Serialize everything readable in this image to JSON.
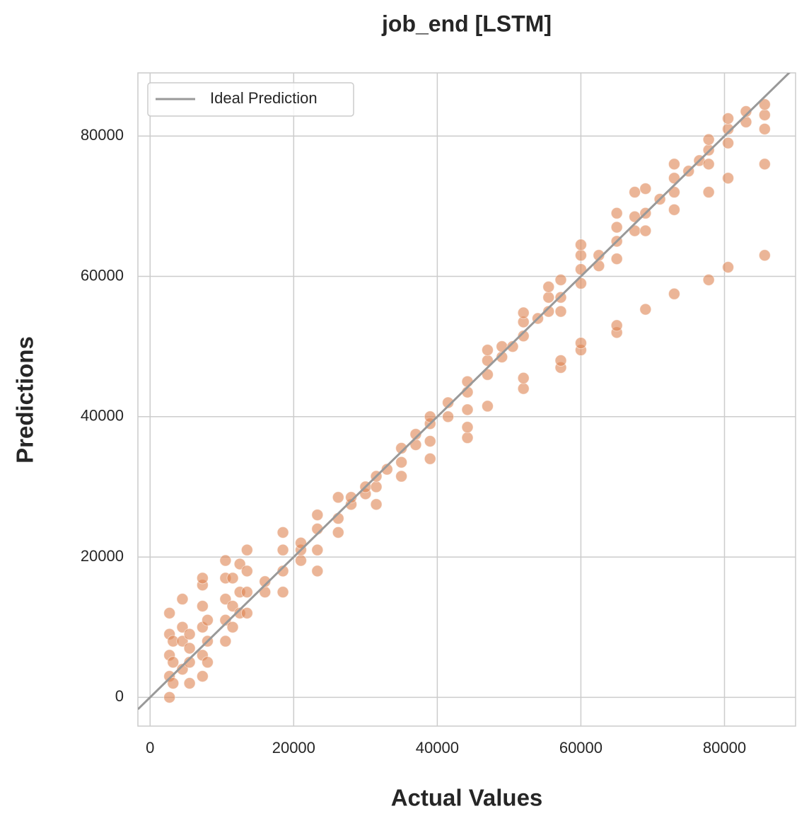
{
  "chart_data": {
    "type": "scatter",
    "title": "job_end [LSTM]",
    "x_label": "Actual Values",
    "y_label": "Predictions",
    "series": [
      {
        "name": null,
        "color": "#dd8452",
        "x": [
          2700,
          2700,
          2700,
          2700,
          2700,
          3200,
          3200,
          3200,
          4500,
          4500,
          4500,
          4500,
          5500,
          5500,
          5500,
          5500,
          7300,
          7300,
          7300,
          7300,
          7300,
          7300,
          8000,
          8000,
          8000,
          10500,
          10500,
          10500,
          10500,
          10500,
          11500,
          11500,
          11500,
          12500,
          12500,
          12500,
          13500,
          13500,
          13500,
          13500,
          16000,
          16000,
          18500,
          18500,
          18500,
          18500,
          21000,
          21000,
          21000,
          23300,
          23300,
          23300,
          23300,
          26200,
          26200,
          26200,
          28000,
          28000,
          30000,
          30000,
          31500,
          31500,
          31500,
          33000,
          35000,
          35000,
          35000,
          37000,
          37000,
          39000,
          39000,
          39000,
          39000,
          41500,
          41500,
          44200,
          44200,
          44200,
          44200,
          44200,
          47000,
          47000,
          47000,
          47000,
          49000,
          49000,
          50500,
          52000,
          52000,
          52000,
          52000,
          52000,
          54000,
          55500,
          55500,
          55500,
          57200,
          57200,
          57200,
          57200,
          57200,
          60000,
          60000,
          60000,
          60000,
          60000,
          60000,
          62500,
          62500,
          65000,
          65000,
          65000,
          65000,
          65000,
          65000,
          67500,
          67500,
          67500,
          69000,
          69000,
          69000,
          69000,
          71000,
          73000,
          73000,
          73000,
          73000,
          73000,
          75000,
          76500,
          77800,
          77800,
          77800,
          77800,
          77800,
          80500,
          80500,
          80500,
          80500,
          80500,
          83000,
          83000,
          85600,
          85600,
          85600,
          85600,
          85600
        ],
        "values": [
          0,
          3000,
          6000,
          9000,
          12000,
          2000,
          5000,
          8000,
          14000,
          4000,
          8000,
          10000,
          2000,
          5000,
          7000,
          9000,
          3000,
          6000,
          10000,
          13000,
          16000,
          17000,
          5000,
          8000,
          11000,
          8000,
          11000,
          14000,
          17000,
          19500,
          10000,
          13000,
          17000,
          12000,
          15000,
          19000,
          12000,
          15000,
          18000,
          21000,
          15000,
          16500,
          15000,
          18000,
          21000,
          23500,
          19500,
          21000,
          22000,
          18000,
          21000,
          24000,
          26000,
          23500,
          25500,
          28500,
          27500,
          28500,
          29000,
          30000,
          27500,
          30000,
          31500,
          32500,
          31500,
          33500,
          35500,
          36000,
          37500,
          34000,
          36500,
          39000,
          40000,
          40000,
          42000,
          37000,
          38500,
          41000,
          43500,
          45000,
          41500,
          46000,
          48000,
          49500,
          48500,
          50000,
          50000,
          44000,
          45500,
          51500,
          53500,
          54800,
          54000,
          55000,
          57000,
          58500,
          47000,
          48000,
          55000,
          57000,
          59500,
          49500,
          50500,
          59000,
          61000,
          63000,
          64500,
          61500,
          63000,
          52000,
          53000,
          62500,
          65000,
          67000,
          69000,
          66500,
          68500,
          72000,
          55300,
          66500,
          69000,
          72500,
          71000,
          57500,
          69500,
          72000,
          74000,
          76000,
          75000,
          76500,
          59500,
          72000,
          76000,
          78000,
          79500,
          61300,
          74000,
          79000,
          81000,
          82500,
          82000,
          83500,
          63000,
          76000,
          81000,
          83000,
          84500
        ]
      }
    ],
    "ideal_line": {
      "name": "Ideal Prediction",
      "color": "#999999",
      "x": [
        -1700,
        89900
      ],
      "y": [
        -1700,
        89900
      ]
    },
    "xlim": [
      -1700,
      89900
    ],
    "ylim": [
      -4100,
      89000
    ],
    "xticks": [
      0,
      20000,
      40000,
      60000,
      80000
    ],
    "yticks": [
      0,
      20000,
      40000,
      60000,
      80000
    ],
    "grid": true,
    "legend": "upper left"
  }
}
